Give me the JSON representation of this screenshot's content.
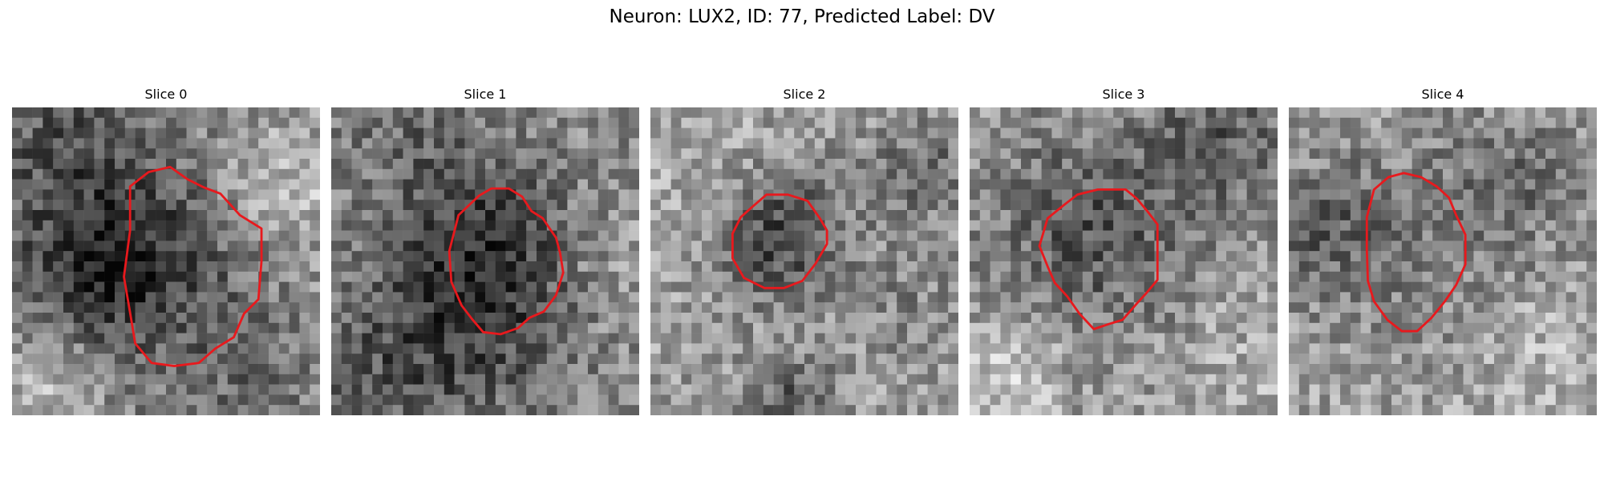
{
  "figure": {
    "title": "Neuron: LUX2, ID: 77, Predicted Label: DV"
  },
  "colors": {
    "contour": "#e8191d"
  },
  "panels": [
    {
      "label": "Slice 0",
      "seed": 11,
      "base": 0.55
    },
    {
      "label": "Slice 1",
      "seed": 23,
      "base": 0.55
    },
    {
      "label": "Slice 2",
      "seed": 37,
      "base": 0.62
    },
    {
      "label": "Slice 3",
      "seed": 41,
      "base": 0.6
    },
    {
      "label": "Slice 4",
      "seed": 59,
      "base": 0.63
    }
  ]
}
